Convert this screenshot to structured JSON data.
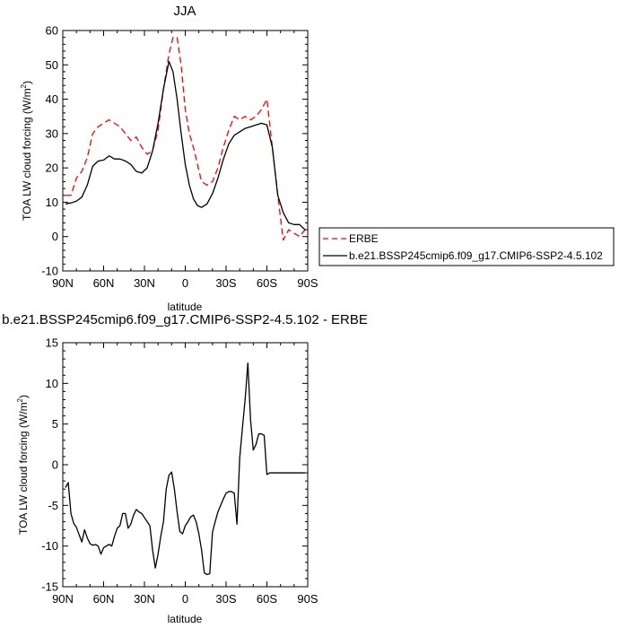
{
  "chart_data": [
    {
      "type": "line",
      "title": "JJA",
      "xlabel": "latitude",
      "ylabel": "TOA LW cloud forcing (W/m²)",
      "xlim": [
        90,
        -90
      ],
      "ylim": [
        -10,
        60
      ],
      "xticks": [
        90,
        60,
        30,
        0,
        -30,
        -60,
        -90
      ],
      "xtick_labels": [
        "90N",
        "60N",
        "30N",
        "0",
        "30S",
        "60S",
        "90S"
      ],
      "yticks": [
        -10,
        0,
        10,
        20,
        30,
        40,
        50,
        60
      ],
      "ytick_labels": [
        "-10",
        "0",
        "10",
        "20",
        "30",
        "40",
        "50",
        "60"
      ],
      "legend": "right",
      "series": [
        {
          "name": "ERBE",
          "color": "#ff0000",
          "dash": "dashed",
          "x": [
            88,
            84,
            80,
            76,
            72,
            68,
            64,
            60,
            56,
            52,
            48,
            44,
            40,
            36,
            32,
            28,
            24,
            20,
            16,
            12,
            9,
            6,
            3,
            0,
            -3,
            -6,
            -9,
            -12,
            -16,
            -20,
            -24,
            -28,
            -32,
            -36,
            -40,
            -44,
            -48,
            -52,
            -56,
            -60,
            -64,
            -68,
            -72,
            -76,
            -80,
            -84,
            -88
          ],
          "y": [
            12,
            12,
            17,
            19,
            23,
            30,
            32,
            33,
            34,
            33,
            32,
            30,
            28,
            29,
            26,
            24,
            25,
            31,
            43,
            53,
            58,
            58,
            50,
            37,
            30,
            26,
            21,
            16,
            15,
            16,
            20,
            26,
            31,
            35,
            34,
            35,
            34,
            35,
            37,
            40,
            26,
            12,
            -1,
            2,
            1,
            0,
            2
          ]
        },
        {
          "name": "b.e21.BSSP245cmip6.f09_g17.CMIP6-SSP2-4.5.102",
          "color": "#000000",
          "dash": "solid",
          "x": [
            88,
            84,
            80,
            76,
            72,
            68,
            64,
            60,
            56,
            52,
            48,
            44,
            40,
            36,
            32,
            28,
            24,
            20,
            16,
            12,
            9,
            6,
            3,
            0,
            -3,
            -6,
            -9,
            -12,
            -16,
            -20,
            -24,
            -28,
            -32,
            -36,
            -40,
            -44,
            -48,
            -52,
            -56,
            -60,
            -64,
            -68,
            -72,
            -76,
            -80,
            -84,
            -88
          ],
          "y": [
            9.5,
            9.8,
            10.3,
            11.5,
            15,
            20.5,
            22,
            22.3,
            23.5,
            22.6,
            22.6,
            22,
            21,
            19,
            18.5,
            20,
            25,
            33,
            43,
            51,
            48,
            40,
            30,
            21,
            15,
            11,
            9,
            8.5,
            9.5,
            12.5,
            17,
            22.5,
            27,
            29.5,
            30.5,
            31.5,
            32,
            32.5,
            33,
            32.5,
            26,
            12,
            7,
            4,
            3.5,
            3.5,
            2
          ]
        }
      ]
    },
    {
      "type": "line",
      "title": "b.e21.BSSP245cmip6.f09_g17.CMIP6-SSP2-4.5.102 - ERBE",
      "xlabel": "latitude",
      "ylabel": "TOA LW cloud forcing (W/m²)",
      "xlim": [
        90,
        -90
      ],
      "ylim": [
        -15,
        15
      ],
      "xticks": [
        90,
        60,
        30,
        0,
        -30,
        -60,
        -90
      ],
      "xtick_labels": [
        "90N",
        "60N",
        "30N",
        "0",
        "30S",
        "60S",
        "90S"
      ],
      "yticks": [
        -15,
        -10,
        -5,
        0,
        5,
        10,
        15
      ],
      "ytick_labels": [
        "-15",
        "-10",
        "-5",
        "0",
        "5",
        "10",
        "15"
      ],
      "series": [
        {
          "color": "#000000",
          "dash": "solid",
          "x": [
            88,
            86,
            84,
            82,
            80,
            78,
            76,
            74,
            72,
            70,
            68,
            66,
            64,
            62,
            60,
            58,
            56,
            54,
            52,
            50,
            48,
            46,
            44,
            42,
            40,
            38,
            36,
            34,
            32,
            30,
            28,
            26,
            24,
            22,
            20,
            18,
            16,
            14,
            12,
            10,
            8,
            6,
            4,
            2,
            0,
            -2,
            -4,
            -6,
            -8,
            -10,
            -12,
            -14,
            -16,
            -18,
            -20,
            -22,
            -24,
            -26,
            -28,
            -30,
            -32,
            -34,
            -36,
            -38,
            -40,
            -42,
            -44,
            -46,
            -48,
            -50,
            -52,
            -54,
            -56,
            -58,
            -60,
            -62,
            -64,
            -66,
            -68,
            -70,
            -72,
            -74,
            -76,
            -78,
            -80,
            -82,
            -84,
            -86,
            -88
          ],
          "y": [
            -2.8,
            -2.2,
            -6,
            -7.2,
            -7.7,
            -8.6,
            -9.5,
            -8,
            -9,
            -9.7,
            -9.9,
            -9.8,
            -10,
            -11,
            -10.2,
            -10,
            -9.8,
            -10,
            -8.8,
            -7.8,
            -7.5,
            -6,
            -6,
            -7.8,
            -7.3,
            -6.2,
            -5.5,
            -5.8,
            -6,
            -6.5,
            -7,
            -7.5,
            -10.5,
            -12.7,
            -11,
            -8.8,
            -7,
            -3,
            -1.3,
            -0.9,
            -3,
            -5.8,
            -8.2,
            -8.5,
            -7.5,
            -7,
            -6.4,
            -6.2,
            -7,
            -8.5,
            -10.5,
            -13.3,
            -13.5,
            -13.4,
            -8.3,
            -7,
            -5.8,
            -5,
            -4.2,
            -3.5,
            -3.3,
            -3.3,
            -3.5,
            -7.3,
            0.8,
            4.5,
            8,
            12.5,
            5.5,
            1.8,
            2.5,
            3.8,
            3.8,
            3.6,
            -1.2,
            -1,
            -1,
            -1,
            -1,
            -1,
            -1,
            -1,
            -1,
            -1,
            -1,
            -1,
            -1,
            -1,
            -1
          ]
        }
      ]
    }
  ]
}
